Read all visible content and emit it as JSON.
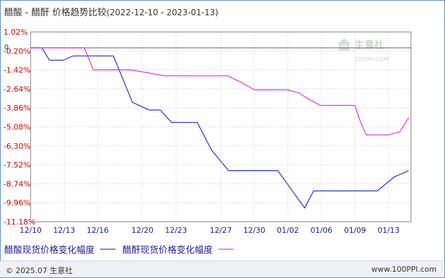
{
  "title": {
    "main": "醋酸 - 醋酐 价格趋势比较",
    "range": "(2022-12-10 - 2023-01-13)"
  },
  "watermark": {
    "name": "生意社",
    "url": "100PPI.COM"
  },
  "footer": {
    "copyright": "© 2025.07 生意社",
    "site": "www.100PPI.com"
  },
  "colors": {
    "series1": "#1a1acc",
    "series2": "#e020d8",
    "grid": "#c8c8c8",
    "axis": "#808080",
    "label": "#cc0000"
  },
  "chart_data": {
    "type": "line",
    "ylim": [
      -11.18,
      1.02
    ],
    "yticks": [
      1.02,
      -0.2,
      -1.42,
      -2.64,
      -3.86,
      -5.08,
      -6.3,
      -7.52,
      -8.74,
      -9.96,
      -11.18
    ],
    "ytick_labels": [
      "1.02%",
      "-0.20%",
      "-1.42%",
      "-2.64%",
      "-3.86%",
      "-5.08%",
      "-6.30%",
      "-7.52%",
      "-8.74%",
      "-9.96%",
      "-11.18%"
    ],
    "zero_label": "0",
    "xlim": [
      0,
      34
    ],
    "xticks": [
      0,
      3,
      6,
      10,
      13,
      17,
      20,
      23,
      26,
      29,
      32,
      34
    ],
    "xtick_labels": [
      "12/10",
      "12/13",
      "12/16",
      "12/20",
      "12/23",
      "12/27",
      "12/30",
      "01/02",
      "01/06",
      "01/09",
      "01/13",
      ""
    ],
    "series": [
      {
        "name": "醋酸现货价格变化幅度",
        "x": [
          0,
          1.0,
          1.7,
          2.9,
          3.8,
          7.4,
          9.1,
          10.6,
          11.6,
          12.6,
          13.9,
          14.9,
          16.2,
          17.7,
          20.1,
          21.3,
          22.1,
          24.5,
          25.3,
          26.4,
          27.5,
          30.0,
          31.0,
          32.5,
          33.8
        ],
        "y": [
          0,
          0,
          -0.8,
          -0.8,
          -0.52,
          -0.52,
          -3.5,
          -4.0,
          -4.0,
          -4.8,
          -4.8,
          -4.8,
          -6.6,
          -7.9,
          -7.9,
          -7.9,
          -7.9,
          -10.3,
          -9.2,
          -9.2,
          -9.2,
          -9.2,
          -9.2,
          -8.3,
          -7.9
        ]
      },
      {
        "name": "醋酐现货价格变化幅度",
        "x": [
          0,
          4.8,
          5.6,
          8.0,
          9.0,
          12.0,
          16.4,
          17.6,
          18.8,
          20.0,
          22.0,
          23.0,
          24.0,
          24.6,
          25.9,
          27.0,
          27.6,
          29.0,
          29.4,
          30.0,
          31.3,
          32.0,
          33.0,
          33.8
        ],
        "y": [
          0,
          0,
          -1.42,
          -1.42,
          -1.42,
          -1.8,
          -1.8,
          -1.8,
          -2.2,
          -2.7,
          -2.7,
          -2.7,
          -2.9,
          -3.2,
          -3.7,
          -3.7,
          -3.7,
          -3.7,
          -4.6,
          -5.6,
          -5.6,
          -5.6,
          -5.4,
          -4.5
        ]
      }
    ]
  }
}
